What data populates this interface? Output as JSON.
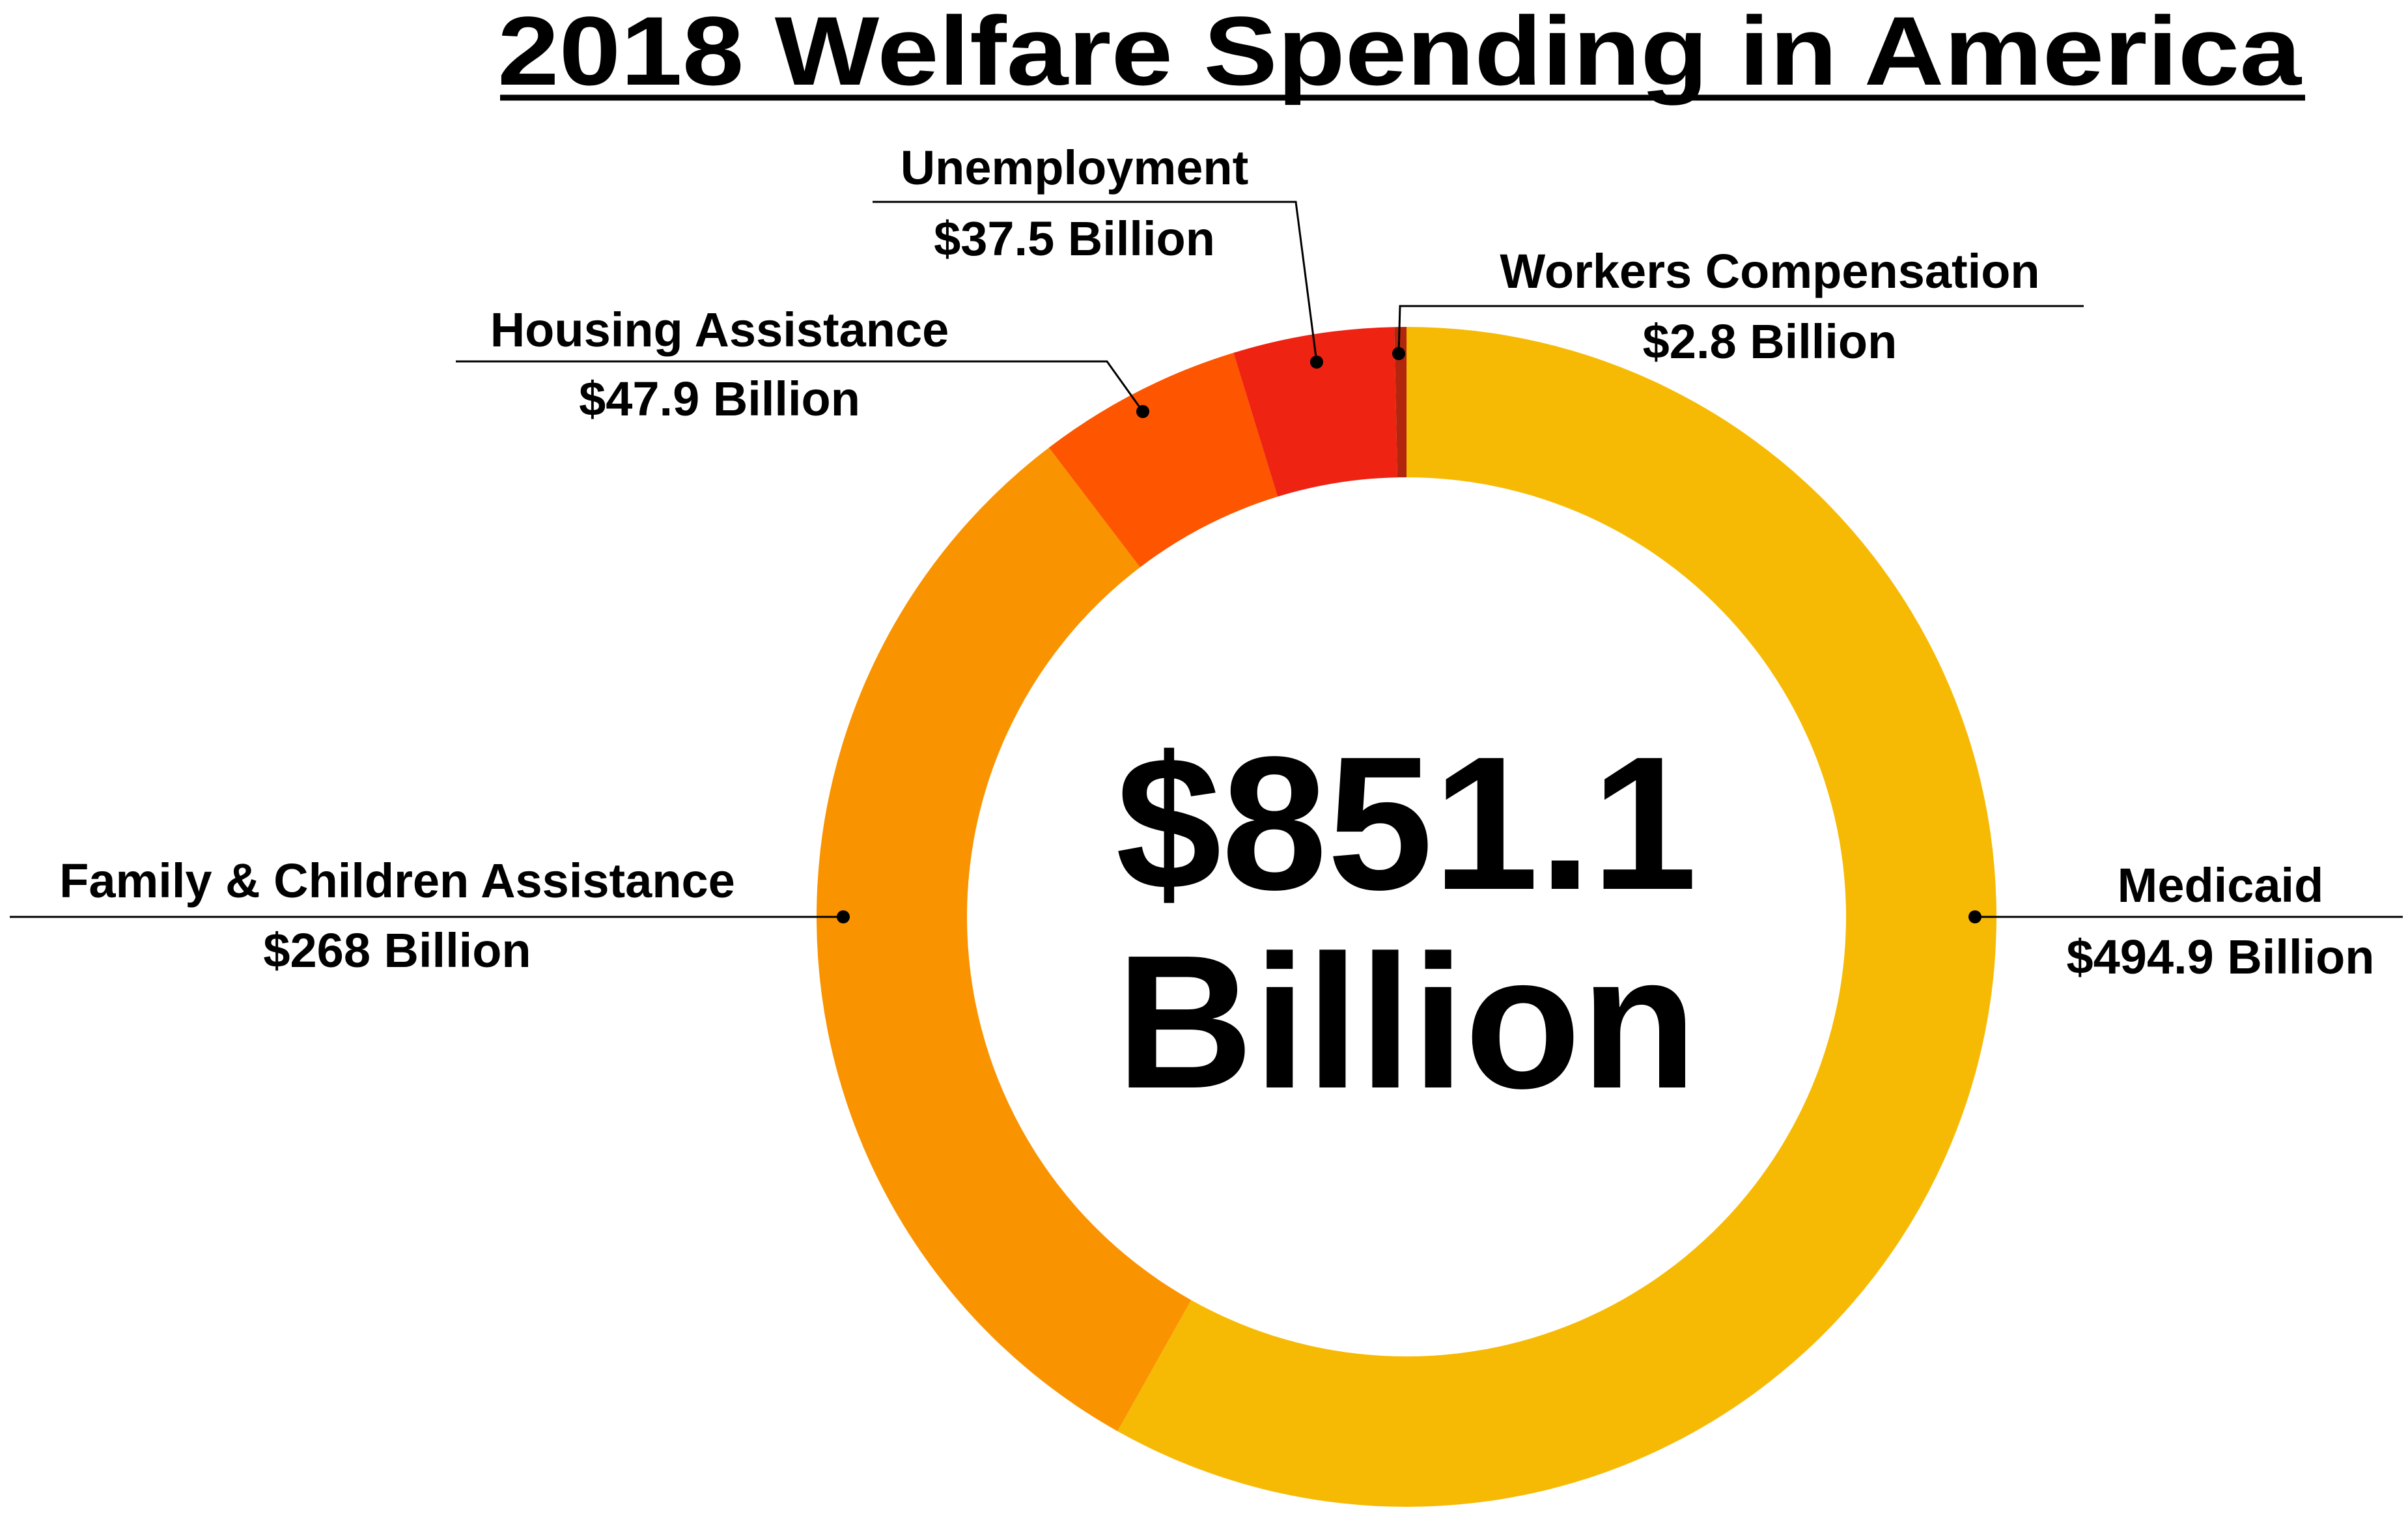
{
  "chart_data": {
    "type": "pie",
    "title": "2018 Welfare Spending in America",
    "center_value": "$851.1",
    "center_unit": "Billion",
    "donut": true,
    "slices": [
      {
        "name": "Medicaid",
        "value": 494.9,
        "value_label": "$494.9 Billion",
        "color": "#F7BA04"
      },
      {
        "name": "Family & Children Assistance",
        "value": 268,
        "value_label": "$268 Billion",
        "color": "#FA9300"
      },
      {
        "name": "Housing Assistance",
        "value": 47.9,
        "value_label": "$47.9 Billion",
        "color": "#FD5500"
      },
      {
        "name": "Unemployment",
        "value": 37.5,
        "value_label": "$37.5 Billion",
        "color": "#EE2312"
      },
      {
        "name": "Workers Compensation",
        "value": 2.8,
        "value_label": "$2.8 Billion",
        "color": "#B3260E"
      }
    ]
  }
}
